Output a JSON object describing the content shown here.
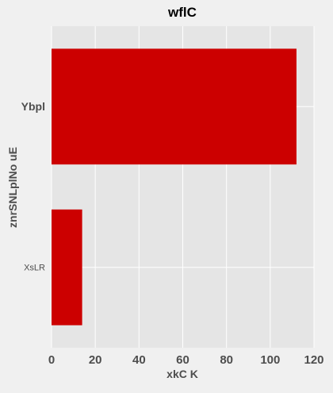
{
  "chart_data": {
    "type": "bar",
    "orientation": "horizontal",
    "title": "wflC",
    "xlabel": "xkC K",
    "ylabel": "znrSNLplNo uE",
    "categories": [
      "Ybpl",
      "XsLR"
    ],
    "values": [
      112,
      14
    ],
    "xlim": [
      0,
      120
    ],
    "xticks": [
      0,
      20,
      40,
      60,
      80,
      100,
      120
    ],
    "xtick_labels": [
      "0",
      "20",
      "40",
      "60",
      "80",
      "100",
      "120"
    ],
    "grid": true,
    "legend": "none",
    "colors": {
      "bar": "#cc0000",
      "plot_background": "#e5e5e5",
      "figure_background": "#f0f0f0",
      "grid": "#ffffff",
      "text": "#4d4d4d",
      "title_text": "#000000"
    }
  }
}
